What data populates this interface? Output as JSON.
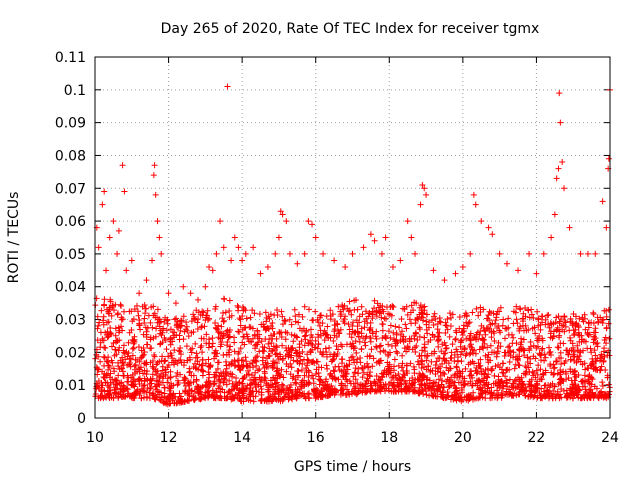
{
  "chart_data": {
    "type": "scatter",
    "title": "Day 265 of 2020, Rate Of TEC Index for receiver tgmx",
    "xlabel": "GPS time / hours",
    "ylabel": "ROTI / TECUs",
    "xlim": [
      10,
      24
    ],
    "ylim": [
      0,
      0.11
    ],
    "x_ticks": [
      10,
      12,
      14,
      16,
      18,
      20,
      22,
      24
    ],
    "x_tick_labels": [
      "10",
      "12",
      "14",
      "16",
      "18",
      "20",
      "22",
      "24"
    ],
    "y_ticks": [
      0,
      0.01,
      0.02,
      0.03,
      0.04,
      0.05,
      0.06,
      0.07,
      0.08,
      0.09,
      0.1,
      0.11
    ],
    "y_tick_labels": [
      "0",
      "0.01",
      "0.02",
      "0.03",
      "0.04",
      "0.05",
      "0.06",
      "0.07",
      "0.08",
      "0.09",
      "0.1",
      "0.11"
    ],
    "grid": true,
    "marker": "+",
    "color": "#ff0000",
    "series": [
      {
        "name": "ROTI",
        "points": [
          [
            10.05,
            0.058
          ],
          [
            10.1,
            0.052
          ],
          [
            10.2,
            0.065
          ],
          [
            10.25,
            0.069
          ],
          [
            10.3,
            0.045
          ],
          [
            10.4,
            0.055
          ],
          [
            10.5,
            0.06
          ],
          [
            10.6,
            0.05
          ],
          [
            10.65,
            0.057
          ],
          [
            10.75,
            0.077
          ],
          [
            10.8,
            0.069
          ],
          [
            10.85,
            0.045
          ],
          [
            11.0,
            0.048
          ],
          [
            11.2,
            0.038
          ],
          [
            11.4,
            0.042
          ],
          [
            11.55,
            0.048
          ],
          [
            11.6,
            0.074
          ],
          [
            11.62,
            0.077
          ],
          [
            11.65,
            0.068
          ],
          [
            11.7,
            0.06
          ],
          [
            11.75,
            0.055
          ],
          [
            11.8,
            0.05
          ],
          [
            12.0,
            0.038
          ],
          [
            12.2,
            0.035
          ],
          [
            12.4,
            0.04
          ],
          [
            12.6,
            0.038
          ],
          [
            12.8,
            0.036
          ],
          [
            13.0,
            0.04
          ],
          [
            13.1,
            0.046
          ],
          [
            13.2,
            0.045
          ],
          [
            13.3,
            0.05
          ],
          [
            13.4,
            0.06
          ],
          [
            13.5,
            0.052
          ],
          [
            13.6,
            0.101
          ],
          [
            13.7,
            0.048
          ],
          [
            13.8,
            0.055
          ],
          [
            13.9,
            0.052
          ],
          [
            14.0,
            0.048
          ],
          [
            14.1,
            0.05
          ],
          [
            14.3,
            0.052
          ],
          [
            14.5,
            0.044
          ],
          [
            14.7,
            0.046
          ],
          [
            14.9,
            0.05
          ],
          [
            15.0,
            0.055
          ],
          [
            15.05,
            0.063
          ],
          [
            15.1,
            0.062
          ],
          [
            15.2,
            0.06
          ],
          [
            15.3,
            0.05
          ],
          [
            15.5,
            0.047
          ],
          [
            15.7,
            0.05
          ],
          [
            15.8,
            0.06
          ],
          [
            15.9,
            0.059
          ],
          [
            16.0,
            0.055
          ],
          [
            16.2,
            0.05
          ],
          [
            16.5,
            0.048
          ],
          [
            16.8,
            0.046
          ],
          [
            17.0,
            0.05
          ],
          [
            17.3,
            0.052
          ],
          [
            17.5,
            0.056
          ],
          [
            17.6,
            0.054
          ],
          [
            17.8,
            0.05
          ],
          [
            17.9,
            0.055
          ],
          [
            18.1,
            0.046
          ],
          [
            18.3,
            0.048
          ],
          [
            18.5,
            0.06
          ],
          [
            18.6,
            0.055
          ],
          [
            18.7,
            0.05
          ],
          [
            18.85,
            0.065
          ],
          [
            18.9,
            0.071
          ],
          [
            18.95,
            0.07
          ],
          [
            19.0,
            0.068
          ],
          [
            19.2,
            0.045
          ],
          [
            19.5,
            0.042
          ],
          [
            19.8,
            0.044
          ],
          [
            20.0,
            0.046
          ],
          [
            20.2,
            0.05
          ],
          [
            20.3,
            0.068
          ],
          [
            20.35,
            0.065
          ],
          [
            20.5,
            0.06
          ],
          [
            20.7,
            0.058
          ],
          [
            20.8,
            0.056
          ],
          [
            21.0,
            0.05
          ],
          [
            21.2,
            0.047
          ],
          [
            21.5,
            0.045
          ],
          [
            21.8,
            0.05
          ],
          [
            22.0,
            0.044
          ],
          [
            22.2,
            0.05
          ],
          [
            22.4,
            0.055
          ],
          [
            22.5,
            0.062
          ],
          [
            22.55,
            0.073
          ],
          [
            22.6,
            0.076
          ],
          [
            22.62,
            0.099
          ],
          [
            22.65,
            0.09
          ],
          [
            22.7,
            0.078
          ],
          [
            22.75,
            0.07
          ],
          [
            22.9,
            0.058
          ],
          [
            23.2,
            0.05
          ],
          [
            23.4,
            0.05
          ],
          [
            23.6,
            0.05
          ],
          [
            23.8,
            0.066
          ],
          [
            23.9,
            0.058
          ],
          [
            23.95,
            0.076
          ],
          [
            23.97,
            0.079
          ],
          [
            24.0,
            0.1
          ]
        ],
        "band": [
          [
            10,
            0.006,
            0.038
          ],
          [
            10.5,
            0.006,
            0.036
          ],
          [
            11,
            0.006,
            0.034
          ],
          [
            11.5,
            0.006,
            0.036
          ],
          [
            12,
            0.004,
            0.03
          ],
          [
            12.5,
            0.005,
            0.032
          ],
          [
            13,
            0.006,
            0.034
          ],
          [
            13.5,
            0.006,
            0.038
          ],
          [
            14,
            0.005,
            0.034
          ],
          [
            14.5,
            0.005,
            0.032
          ],
          [
            15,
            0.005,
            0.034
          ],
          [
            15.5,
            0.006,
            0.034
          ],
          [
            16,
            0.006,
            0.034
          ],
          [
            16.5,
            0.007,
            0.034
          ],
          [
            17,
            0.007,
            0.036
          ],
          [
            17.5,
            0.008,
            0.036
          ],
          [
            18,
            0.008,
            0.036
          ],
          [
            18.5,
            0.008,
            0.036
          ],
          [
            19,
            0.007,
            0.034
          ],
          [
            19.5,
            0.006,
            0.032
          ],
          [
            20,
            0.005,
            0.032
          ],
          [
            20.5,
            0.006,
            0.034
          ],
          [
            21,
            0.006,
            0.034
          ],
          [
            21.5,
            0.007,
            0.034
          ],
          [
            22,
            0.006,
            0.034
          ],
          [
            22.5,
            0.006,
            0.032
          ],
          [
            23,
            0.006,
            0.032
          ],
          [
            23.5,
            0.006,
            0.032
          ],
          [
            24,
            0.006,
            0.034
          ]
        ]
      }
    ]
  }
}
